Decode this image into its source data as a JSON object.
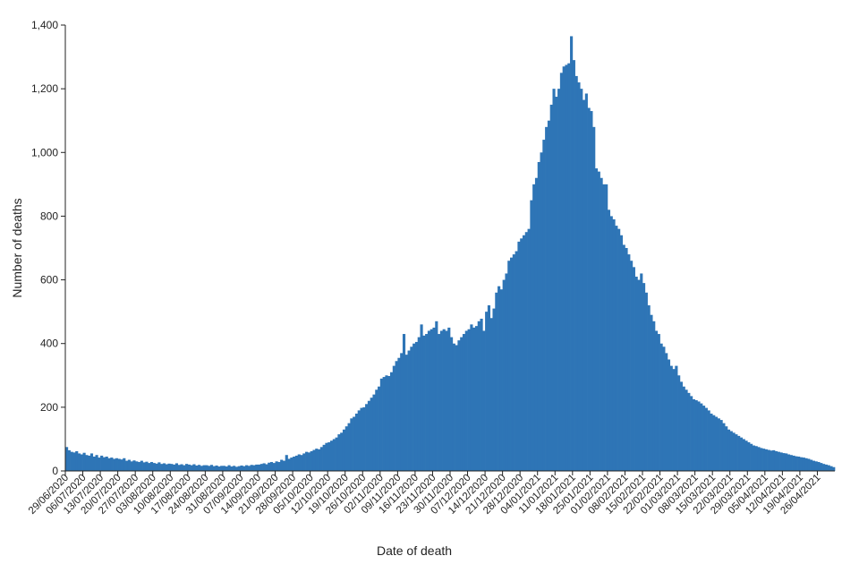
{
  "chart_data": {
    "type": "bar",
    "title": "",
    "xlabel": "Date of death",
    "ylabel": "Number of deaths",
    "ylim": [
      0,
      1400
    ],
    "yticks": [
      0,
      200,
      400,
      600,
      800,
      1000,
      1200,
      1400
    ],
    "ytick_labels": [
      "0",
      "200",
      "400",
      "600",
      "800",
      "1,000",
      "1,200",
      "1,400"
    ],
    "grid": false,
    "legend": "none",
    "bar_color": "#2e75b6",
    "x_tick_labels": [
      "29/06/2020",
      "06/07/2020",
      "13/07/2020",
      "20/07/2020",
      "27/07/2020",
      "03/08/2020",
      "10/08/2020",
      "17/08/2020",
      "24/08/2020",
      "31/08/2020",
      "07/09/2020",
      "14/09/2020",
      "21/09/2020",
      "28/09/2020",
      "05/10/2020",
      "12/10/2020",
      "19/10/2020",
      "26/10/2020",
      "02/11/2020",
      "09/11/2020",
      "16/11/2020",
      "23/11/2020",
      "30/11/2020",
      "07/12/2020",
      "14/12/2020",
      "21/12/2020",
      "28/12/2020",
      "04/01/2021",
      "11/01/2021",
      "18/01/2021",
      "25/01/2021",
      "01/02/2021",
      "08/02/2021",
      "15/02/2021",
      "22/02/2021",
      "01/03/2021",
      "08/03/2021",
      "15/03/2021",
      "22/03/2021",
      "29/03/2021",
      "05/04/2021",
      "12/04/2021",
      "19/04/2021",
      "26/04/2021"
    ],
    "weekly_values": [
      [
        75,
        65,
        60,
        58,
        62,
        55,
        52
      ],
      [
        57,
        50,
        48,
        55,
        45,
        50,
        42
      ],
      [
        48,
        43,
        45,
        40,
        42,
        38,
        40
      ],
      [
        38,
        36,
        40,
        32,
        35,
        30,
        33
      ],
      [
        30,
        28,
        32,
        27,
        29,
        25,
        28
      ],
      [
        25,
        23,
        27,
        22,
        24,
        21,
        23
      ],
      [
        22,
        20,
        24,
        19,
        21,
        18,
        22
      ],
      [
        20,
        18,
        21,
        17,
        19,
        16,
        18
      ],
      [
        18,
        16,
        19,
        15,
        17,
        14,
        16
      ],
      [
        16,
        14,
        18,
        14,
        16,
        13,
        15
      ],
      [
        17,
        15,
        18,
        16,
        19,
        18,
        20
      ],
      [
        20,
        22,
        24,
        21,
        26,
        28,
        25
      ],
      [
        30,
        28,
        35,
        32,
        50,
        38,
        42
      ],
      [
        45,
        48,
        52,
        50,
        55,
        60,
        58
      ],
      [
        62,
        66,
        70,
        68,
        75,
        82,
        88
      ],
      [
        90,
        95,
        100,
        105,
        115,
        120,
        130
      ],
      [
        140,
        150,
        165,
        170,
        180,
        190,
        198
      ],
      [
        200,
        210,
        220,
        230,
        240,
        255,
        265
      ],
      [
        290,
        295,
        300,
        298,
        310,
        330,
        345
      ],
      [
        355,
        370,
        430,
        365,
        378,
        390,
        400
      ],
      [
        405,
        420,
        460,
        425,
        430,
        440,
        445
      ],
      [
        450,
        470,
        430,
        440,
        445,
        440,
        450
      ],
      [
        420,
        400,
        395,
        410,
        420,
        430,
        440
      ],
      [
        445,
        460,
        450,
        455,
        470,
        478,
        440
      ],
      [
        500,
        520,
        480,
        510,
        560,
        580,
        570
      ],
      [
        600,
        620,
        660,
        670,
        680,
        690,
        720
      ],
      [
        730,
        740,
        750,
        760,
        850,
        900,
        920
      ],
      [
        970,
        1000,
        1040,
        1080,
        1100,
        1150,
        1200
      ],
      [
        1175,
        1200,
        1250,
        1270,
        1275,
        1280,
        1365
      ],
      [
        1290,
        1240,
        1220,
        1200,
        1165,
        1185,
        1140
      ],
      [
        1130,
        1080,
        950,
        940,
        920,
        900,
        900
      ],
      [
        820,
        800,
        790,
        770,
        760,
        740,
        710
      ],
      [
        700,
        680,
        660,
        640,
        610,
        600,
        620
      ],
      [
        590,
        560,
        520,
        490,
        470,
        440,
        430
      ],
      [
        400,
        390,
        370,
        350,
        330,
        320,
        330
      ],
      [
        300,
        280,
        265,
        255,
        245,
        235,
        225
      ],
      [
        222,
        218,
        212,
        205,
        198,
        190,
        180
      ],
      [
        175,
        170,
        165,
        160,
        150,
        140,
        130
      ],
      [
        125,
        120,
        115,
        110,
        105,
        100,
        95
      ],
      [
        90,
        85,
        80,
        78,
        75,
        72,
        70
      ],
      [
        68,
        66,
        64,
        65,
        62,
        60,
        58
      ],
      [
        56,
        55,
        52,
        50,
        48,
        46,
        45
      ],
      [
        43,
        42,
        40,
        38,
        35,
        32,
        30
      ],
      [
        28,
        25,
        22,
        20,
        18,
        15,
        12
      ]
    ]
  }
}
